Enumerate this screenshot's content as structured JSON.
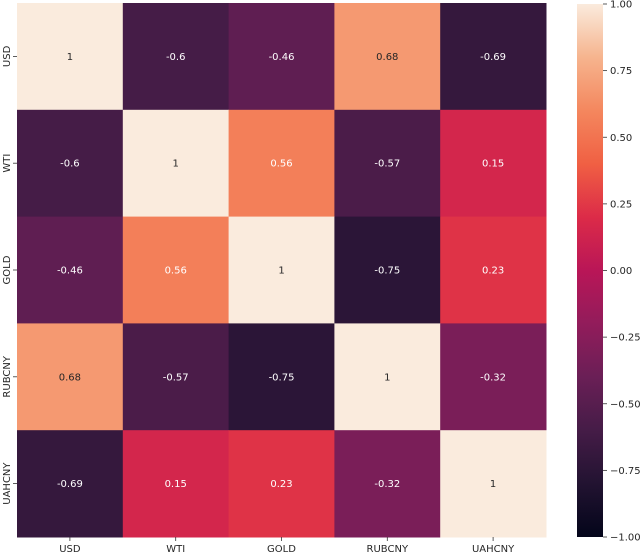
{
  "chart_data": {
    "type": "heatmap",
    "title": "",
    "xlabel": "",
    "ylabel": "",
    "x_categories": [
      "USD",
      "WTI",
      "GOLD",
      "RUBCNY",
      "UAHCNY"
    ],
    "y_categories": [
      "USD",
      "WTI",
      "GOLD",
      "RUBCNY",
      "UAHCNY"
    ],
    "values": [
      [
        1,
        -0.6,
        -0.46,
        0.68,
        -0.69
      ],
      [
        -0.6,
        1,
        0.56,
        -0.57,
        0.15
      ],
      [
        -0.46,
        0.56,
        1,
        -0.75,
        0.23
      ],
      [
        0.68,
        -0.57,
        -0.75,
        1,
        -0.32
      ],
      [
        -0.69,
        0.15,
        0.23,
        -0.32,
        1
      ]
    ],
    "value_labels": [
      [
        "1",
        "-0.6",
        "-0.46",
        "0.68",
        "-0.69"
      ],
      [
        "-0.6",
        "1",
        "0.56",
        "-0.57",
        "0.15"
      ],
      [
        "-0.46",
        "0.56",
        "1",
        "-0.75",
        "0.23"
      ],
      [
        "0.68",
        "-0.57",
        "-0.75",
        "1",
        "-0.32"
      ],
      [
        "-0.69",
        "0.15",
        "0.23",
        "-0.32",
        "1"
      ]
    ],
    "colorbar": {
      "range": [
        -1,
        1
      ],
      "ticks": [
        1,
        0.75,
        0.5,
        0.25,
        0,
        -0.25,
        -0.5,
        -0.75,
        -1
      ],
      "tick_labels": [
        "1.00",
        "0.75",
        "0.50",
        "0.25",
        "0.00",
        "−0.25",
        "−0.50",
        "−0.75",
        "−1.00"
      ],
      "colormap": "rocket",
      "colormap_stops": [
        "#03051a",
        "#221331",
        "#451c47",
        "#6a1f56",
        "#921c5b",
        "#b91657",
        "#dc2b48",
        "#f06043",
        "#f4875e",
        "#f6b48e",
        "#faebdd"
      ]
    }
  }
}
